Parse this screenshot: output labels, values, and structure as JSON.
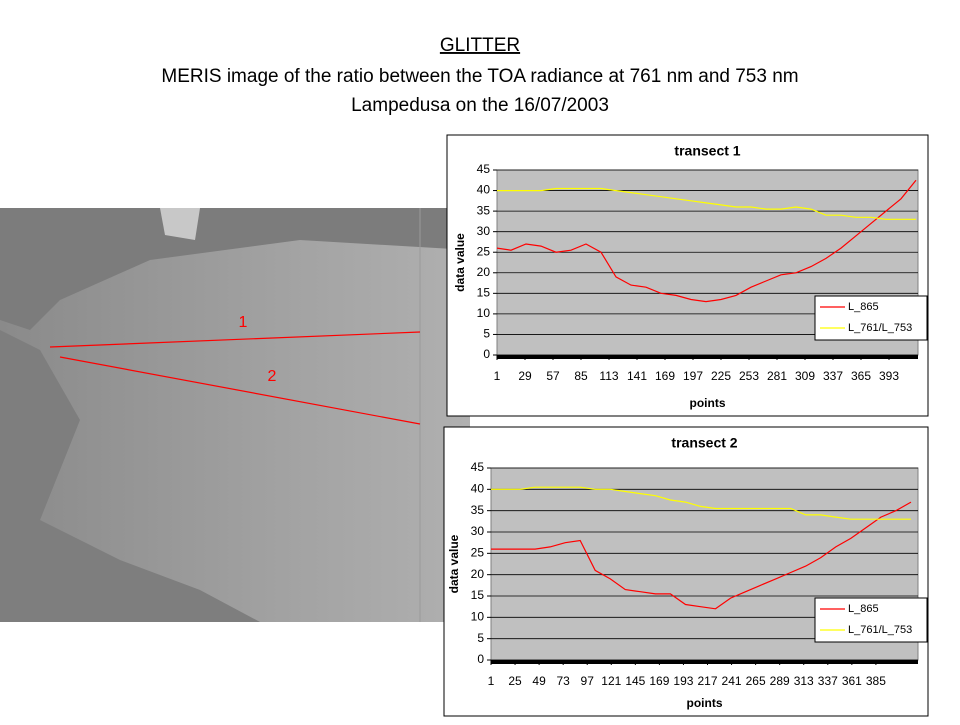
{
  "header": {
    "title": "GLITTER",
    "subtitle": "MERIS image of the ratio between the TOA radiance at 761 nm and 753 nm",
    "caption": "Lampedusa on the 16/07/2003"
  },
  "image": {
    "labels": [
      "1",
      "2"
    ]
  },
  "chart_data": [
    {
      "type": "line",
      "title": "transect 1",
      "x_label": "points",
      "y_label": "data value",
      "x": [
        1,
        15,
        30,
        45,
        60,
        75,
        90,
        105,
        120,
        135,
        150,
        165,
        180,
        195,
        210,
        225,
        240,
        255,
        270,
        285,
        300,
        315,
        330,
        345,
        360,
        375,
        390,
        405,
        420
      ],
      "series": [
        {
          "name": "L_865",
          "color": "#ff0000",
          "values": [
            26,
            25.5,
            27,
            26.5,
            25,
            25.5,
            27,
            25,
            19,
            17,
            16.5,
            15,
            14.5,
            13.5,
            13,
            13.5,
            14.5,
            16.5,
            18,
            19.5,
            20,
            21.5,
            23.5,
            26,
            29,
            32,
            35,
            38,
            42.5
          ]
        },
        {
          "name": "L_761/L_753",
          "color": "#ffff00",
          "values": [
            40,
            40,
            40,
            40,
            40.5,
            40.5,
            40.5,
            40.5,
            40,
            39.5,
            39,
            38.5,
            38,
            37.5,
            37,
            36.5,
            36,
            36,
            35.5,
            35.5,
            36,
            35.5,
            34,
            34,
            33.5,
            33.5,
            33,
            33,
            33
          ]
        }
      ],
      "xlim": [
        1,
        422
      ],
      "xticks": [
        1,
        29,
        57,
        85,
        113,
        141,
        169,
        197,
        225,
        253,
        281,
        309,
        337,
        365,
        393
      ],
      "ylim": [
        0,
        45
      ],
      "yticks": [
        0,
        5,
        10,
        15,
        20,
        25,
        30,
        35,
        40,
        45
      ],
      "grid": true,
      "legend": "right"
    },
    {
      "type": "line",
      "title": "transect 2",
      "x_label": "points",
      "y_label": "data value",
      "x": [
        1,
        15,
        30,
        45,
        60,
        75,
        90,
        105,
        120,
        135,
        150,
        165,
        180,
        195,
        210,
        225,
        240,
        255,
        270,
        285,
        300,
        315,
        330,
        345,
        360,
        375,
        390,
        405,
        420
      ],
      "series": [
        {
          "name": "L_865",
          "color": "#ff0000",
          "values": [
            26,
            26,
            26,
            26,
            26.5,
            27.5,
            28,
            21,
            19,
            16.5,
            16,
            15.5,
            15.5,
            13,
            12.5,
            12,
            14.5,
            16,
            17.5,
            19,
            20.5,
            22,
            24,
            26.5,
            28.5,
            31,
            33.5,
            35,
            37
          ]
        },
        {
          "name": "L_761/L_753",
          "color": "#ffff00",
          "values": [
            40,
            40,
            40,
            40.5,
            40.5,
            40.5,
            40.5,
            40,
            40,
            39.5,
            39,
            38.5,
            37.5,
            37,
            36,
            35.5,
            35.5,
            35.5,
            35.5,
            35.5,
            35.5,
            34,
            34,
            33.5,
            33,
            33,
            33,
            33,
            33
          ]
        }
      ],
      "xlim": [
        1,
        427
      ],
      "xticks": [
        1,
        25,
        49,
        73,
        97,
        121,
        145,
        169,
        193,
        217,
        241,
        265,
        289,
        313,
        337,
        361,
        385
      ],
      "ylim": [
        0,
        45
      ],
      "yticks": [
        0,
        5,
        10,
        15,
        20,
        25,
        30,
        35,
        40,
        45
      ],
      "grid": true,
      "legend": "right"
    }
  ]
}
